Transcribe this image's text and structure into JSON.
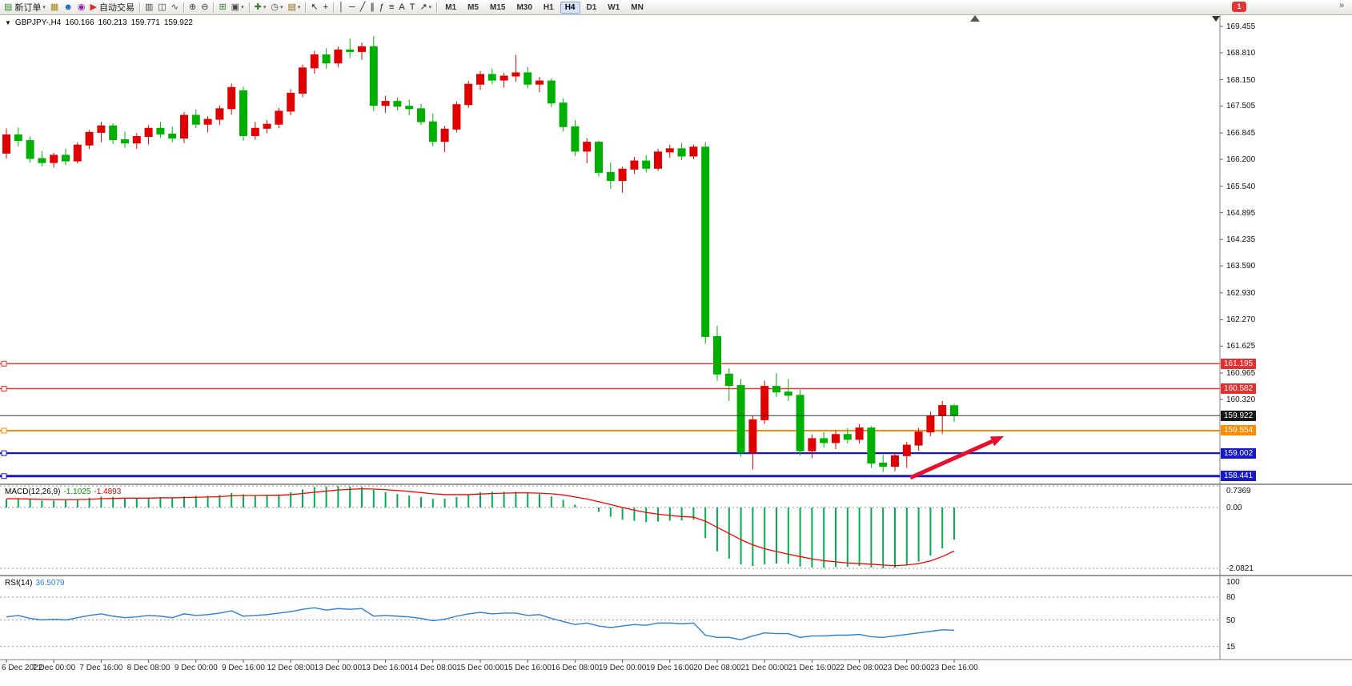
{
  "glyphs": {
    "caret": "▾",
    "collapse": "▼",
    "overflow": "»"
  },
  "colors": {
    "bull": "#e00000",
    "bear": "#00b000",
    "macd_hist": "#00b050",
    "macd_signal": "#ff0000",
    "rsi": "#2f7ed8"
  },
  "toolbar": {
    "badge": "1",
    "active_timeframe": "H4",
    "timeframes": [
      "M1",
      "M5",
      "M15",
      "M30",
      "H1",
      "H4",
      "D1",
      "W1",
      "MN"
    ],
    "items": [
      {
        "name": "new-order-button",
        "glyph": "▤",
        "color": "#2e8b2e",
        "label": "新订单",
        "caret": true
      },
      {
        "name": "new-chart-button",
        "glyph": "▦",
        "color": "#a8860b",
        "caret": false
      },
      {
        "name": "profiles-button",
        "glyph": "☻",
        "color": "#1565c0",
        "caret": false
      },
      {
        "name": "sounds-button",
        "glyph": "◉",
        "color": "#8e24aa",
        "caret": false
      },
      {
        "name": "autotrading-button",
        "glyph": "▶",
        "color": "#d32f2f",
        "label": "自动交易",
        "caret": false
      },
      {
        "sep": true
      },
      {
        "name": "bar-chart-button",
        "glyph": "▥",
        "color": "#444444",
        "caret": false
      },
      {
        "name": "candlestick-chart-button",
        "glyph": "◫",
        "color": "#444444",
        "caret": false
      },
      {
        "name": "line-chart-button",
        "glyph": "∿",
        "color": "#444444",
        "caret": false
      },
      {
        "sep": true
      },
      {
        "name": "zoom-in-button",
        "glyph": "⊕",
        "color": "#444444",
        "caret": false
      },
      {
        "name": "zoom-out-button",
        "glyph": "⊖",
        "color": "#444444",
        "caret": false
      },
      {
        "sep": true
      },
      {
        "name": "tile-windows-button",
        "glyph": "⊞",
        "color": "#2e7d32",
        "caret": false
      },
      {
        "name": "arrange-windows-button",
        "glyph": "▣",
        "color": "#444444",
        "caret": true
      },
      {
        "sep": true
      },
      {
        "name": "indicators-button",
        "glyph": "✚",
        "color": "#2e7d32",
        "caret": true
      },
      {
        "name": "periods-button",
        "glyph": "◷",
        "color": "#444444",
        "caret": true
      },
      {
        "name": "templates-button",
        "glyph": "▤",
        "color": "#8b6914",
        "caret": true
      },
      {
        "sep": true
      },
      {
        "name": "cursor-button",
        "glyph": "↖",
        "color": "#222222",
        "caret": false
      },
      {
        "name": "crosshair-button",
        "glyph": "+",
        "color": "#222222",
        "caret": false
      },
      {
        "sep": true
      },
      {
        "name": "vertical-line-button",
        "glyph": "│",
        "color": "#222222",
        "caret": false
      },
      {
        "name": "horizontal-line-button",
        "glyph": "─",
        "color": "#222222",
        "caret": false
      },
      {
        "name": "trendline-button",
        "glyph": "╱",
        "color": "#222222",
        "caret": false
      },
      {
        "name": "channel-button",
        "glyph": "∥",
        "color": "#222222",
        "caret": false
      },
      {
        "name": "fibonacci-button",
        "glyph": "ƒ",
        "color": "#222222",
        "caret": false
      },
      {
        "name": "lines-button",
        "glyph": "≡",
        "color": "#222222",
        "caret": false
      },
      {
        "name": "text-button",
        "glyph": "A",
        "color": "#222222",
        "caret": false
      },
      {
        "name": "label-button",
        "glyph": "T",
        "color": "#222222",
        "caret": false
      },
      {
        "name": "arrows-button",
        "glyph": "↗",
        "color": "#222222",
        "caret": true
      },
      {
        "sep": true
      }
    ]
  },
  "symbol_info": {
    "symbol": "GBPJPY-,H4",
    "open": "160.166",
    "high": "160.213",
    "low": "159.771",
    "close": "159.922"
  },
  "indicators": {
    "macd": {
      "name": "MACD(12,26,9)",
      "main_value": "-1.1025",
      "signal_value": "-1.4893"
    },
    "rsi": {
      "name": "RSI(14)",
      "value": "36.5079"
    }
  },
  "chart": {
    "price_boxes": [
      {
        "text": "161.195",
        "price": 161.195,
        "bg": "#e03030"
      },
      {
        "text": "160.582",
        "price": 160.582,
        "bg": "#e03030"
      },
      {
        "text": "159.922",
        "price": 159.922,
        "bg": "#151515"
      },
      {
        "text": "159.554",
        "price": 159.554,
        "bg": "#ff8c00"
      },
      {
        "text": "159.002",
        "price": 159.002,
        "bg": "#1717cc"
      },
      {
        "text": "158.441",
        "price": 158.441,
        "bg": "#1717cc"
      }
    ],
    "hlines": [
      {
        "price": 161.195,
        "color": "#ff2a2a",
        "width": 1.4
      },
      {
        "price": 160.582,
        "color": "#ff2a2a",
        "width": 1.4
      },
      {
        "price": 159.554,
        "color": "#ff8c00",
        "width": 2
      },
      {
        "price": 159.002,
        "color": "#1717cc",
        "width": 2.2
      },
      {
        "price": 158.441,
        "color": "#1717cc",
        "width": 3
      }
    ],
    "current_price": {
      "price": 159.922,
      "text": "159.922",
      "color": "#333333"
    },
    "arrow": {
      "i1": 76.3,
      "p1": 158.4,
      "i2": 84.2,
      "p2": 159.42,
      "color": "#e8112d"
    }
  },
  "chart_data": [
    {
      "type": "candlestick",
      "symbol": "GBPJPY-",
      "timeframe": "H4",
      "y_axis_ticks": [
        "169.455",
        "168.810",
        "168.150",
        "167.505",
        "166.845",
        "166.200",
        "165.540",
        "164.895",
        "164.235",
        "163.590",
        "162.930",
        "162.270",
        "161.625",
        "160.965",
        "160.320"
      ],
      "time_labels": [
        [
          "6 Dec 2022",
          0
        ],
        [
          "7 Dec 00:00",
          4
        ],
        [
          "7 Dec 16:00",
          8
        ],
        [
          "8 Dec 08:00",
          12
        ],
        [
          "9 Dec 00:00",
          16
        ],
        [
          "9 Dec 16:00",
          20
        ],
        [
          "12 Dec 08:00",
          24
        ],
        [
          "13 Dec 00:00",
          28
        ],
        [
          "13 Dec 16:00",
          32
        ],
        [
          "14 Dec 08:00",
          36
        ],
        [
          "15 Dec 00:00",
          40
        ],
        [
          "15 Dec 16:00",
          44
        ],
        [
          "16 Dec 08:00",
          48
        ],
        [
          "19 Dec 00:00",
          52
        ],
        [
          "19 Dec 16:00",
          56
        ],
        [
          "20 Dec 08:00",
          60
        ],
        [
          "21 Dec 00:00",
          64
        ],
        [
          "21 Dec 16:00",
          68
        ],
        [
          "22 Dec 08:00",
          72
        ],
        [
          "23 Dec 00:00",
          76
        ],
        [
          "23 Dec 16:00",
          80
        ]
      ],
      "ohlc": [
        [
          166.35,
          166.95,
          166.22,
          166.8
        ],
        [
          166.8,
          166.98,
          166.52,
          166.66
        ],
        [
          166.66,
          166.76,
          166.12,
          166.22
        ],
        [
          166.22,
          166.4,
          166.02,
          166.12
        ],
        [
          166.12,
          166.36,
          166.0,
          166.3
        ],
        [
          166.3,
          166.46,
          166.06,
          166.16
        ],
        [
          166.16,
          166.62,
          166.1,
          166.55
        ],
        [
          166.55,
          166.92,
          166.45,
          166.86
        ],
        [
          166.86,
          167.12,
          166.62,
          167.02
        ],
        [
          167.02,
          167.08,
          166.58,
          166.68
        ],
        [
          166.68,
          166.88,
          166.48,
          166.6
        ],
        [
          166.6,
          166.84,
          166.46,
          166.76
        ],
        [
          166.76,
          167.04,
          166.56,
          166.96
        ],
        [
          166.96,
          167.12,
          166.72,
          166.82
        ],
        [
          166.82,
          167.0,
          166.62,
          166.72
        ],
        [
          166.72,
          167.36,
          166.6,
          167.28
        ],
        [
          167.28,
          167.42,
          166.96,
          167.06
        ],
        [
          167.06,
          167.26,
          166.86,
          167.18
        ],
        [
          167.18,
          167.52,
          167.04,
          167.44
        ],
        [
          167.44,
          168.06,
          167.3,
          167.96
        ],
        [
          167.88,
          167.98,
          166.66,
          166.78
        ],
        [
          166.78,
          167.12,
          166.68,
          166.96
        ],
        [
          166.96,
          167.16,
          166.84,
          167.06
        ],
        [
          167.06,
          167.46,
          166.96,
          167.38
        ],
        [
          167.38,
          167.92,
          167.28,
          167.82
        ],
        [
          167.82,
          168.52,
          167.72,
          168.44
        ],
        [
          168.44,
          168.86,
          168.3,
          168.76
        ],
        [
          168.76,
          168.92,
          168.42,
          168.56
        ],
        [
          168.56,
          168.96,
          168.46,
          168.88
        ],
        [
          168.88,
          169.16,
          168.68,
          168.84
        ],
        [
          168.84,
          169.06,
          168.64,
          168.96
        ],
        [
          168.96,
          169.22,
          167.38,
          167.52
        ],
        [
          167.52,
          167.76,
          167.34,
          167.62
        ],
        [
          167.62,
          167.72,
          167.4,
          167.5
        ],
        [
          167.5,
          167.66,
          167.28,
          167.44
        ],
        [
          167.44,
          167.56,
          167.04,
          167.12
        ],
        [
          167.12,
          167.32,
          166.52,
          166.64
        ],
        [
          166.64,
          167.02,
          166.38,
          166.94
        ],
        [
          166.94,
          167.62,
          166.86,
          167.54
        ],
        [
          167.54,
          168.12,
          167.46,
          168.04
        ],
        [
          168.04,
          168.36,
          167.9,
          168.28
        ],
        [
          168.28,
          168.42,
          168.04,
          168.14
        ],
        [
          168.14,
          168.32,
          167.96,
          168.24
        ],
        [
          168.24,
          168.76,
          168.1,
          168.32
        ],
        [
          168.32,
          168.46,
          167.94,
          168.04
        ],
        [
          168.04,
          168.22,
          167.84,
          168.12
        ],
        [
          168.12,
          168.18,
          167.48,
          167.58
        ],
        [
          167.58,
          167.7,
          166.88,
          167.0
        ],
        [
          167.0,
          167.16,
          166.28,
          166.4
        ],
        [
          166.4,
          166.72,
          166.1,
          166.62
        ],
        [
          166.62,
          166.66,
          165.78,
          165.88
        ],
        [
          165.88,
          166.12,
          165.48,
          165.68
        ],
        [
          165.68,
          166.02,
          165.38,
          165.96
        ],
        [
          165.96,
          166.26,
          165.84,
          166.16
        ],
        [
          166.16,
          166.3,
          165.88,
          165.98
        ],
        [
          165.98,
          166.46,
          165.92,
          166.38
        ],
        [
          166.38,
          166.56,
          166.24,
          166.46
        ],
        [
          166.46,
          166.6,
          166.18,
          166.28
        ],
        [
          166.28,
          166.56,
          166.2,
          166.5
        ],
        [
          166.5,
          166.62,
          161.68,
          161.86
        ],
        [
          161.86,
          162.12,
          160.78,
          160.94
        ],
        [
          160.94,
          161.08,
          160.28,
          160.66
        ],
        [
          160.66,
          160.82,
          158.92,
          159.02
        ],
        [
          159.02,
          159.92,
          158.6,
          159.82
        ],
        [
          159.82,
          160.78,
          159.72,
          160.64
        ],
        [
          160.64,
          160.96,
          160.38,
          160.5
        ],
        [
          160.5,
          160.82,
          160.28,
          160.42
        ],
        [
          160.42,
          160.56,
          158.94,
          159.06
        ],
        [
          159.06,
          159.46,
          158.88,
          159.36
        ],
        [
          159.36,
          159.52,
          159.14,
          159.26
        ],
        [
          159.26,
          159.56,
          159.1,
          159.46
        ],
        [
          159.46,
          159.62,
          159.24,
          159.34
        ],
        [
          159.34,
          159.72,
          159.24,
          159.62
        ],
        [
          159.62,
          159.66,
          158.64,
          158.76
        ],
        [
          158.76,
          158.96,
          158.54,
          158.68
        ],
        [
          158.68,
          159.02,
          158.56,
          158.94
        ],
        [
          158.94,
          159.28,
          158.64,
          159.2
        ],
        [
          159.2,
          159.62,
          159.06,
          159.52
        ],
        [
          159.52,
          160.02,
          159.42,
          159.92
        ],
        [
          159.92,
          160.28,
          159.48,
          160.17
        ],
        [
          160.166,
          160.213,
          159.771,
          159.922
        ]
      ]
    },
    {
      "type": "bar",
      "name": "MACD(12,26,9)",
      "levels": [
        {
          "label": "0.7369",
          "v": 0.7369
        },
        {
          "label": "0.00",
          "v": 0
        },
        {
          "label": "-2.0821",
          "v": -2.0821
        }
      ],
      "main": [
        0.28,
        0.3,
        0.27,
        0.24,
        0.24,
        0.25,
        0.28,
        0.33,
        0.37,
        0.36,
        0.33,
        0.32,
        0.34,
        0.35,
        0.33,
        0.38,
        0.4,
        0.4,
        0.43,
        0.5,
        0.45,
        0.42,
        0.42,
        0.45,
        0.52,
        0.62,
        0.7,
        0.72,
        0.73,
        0.72,
        0.7,
        0.6,
        0.52,
        0.46,
        0.41,
        0.36,
        0.3,
        0.3,
        0.36,
        0.45,
        0.52,
        0.54,
        0.54,
        0.54,
        0.5,
        0.46,
        0.38,
        0.26,
        0.1,
        0.0,
        -0.15,
        -0.32,
        -0.42,
        -0.46,
        -0.5,
        -0.48,
        -0.45,
        -0.44,
        -0.42,
        -1.05,
        -1.5,
        -1.75,
        -1.95,
        -2.0,
        -1.95,
        -1.92,
        -1.93,
        -2.02,
        -2.05,
        -2.06,
        -2.04,
        -2.03,
        -2.0,
        -2.05,
        -2.08,
        -2.06,
        -1.98,
        -1.85,
        -1.65,
        -1.4,
        -1.1025
      ],
      "signal": [
        0.3,
        0.3,
        0.29,
        0.28,
        0.27,
        0.27,
        0.27,
        0.28,
        0.3,
        0.31,
        0.32,
        0.32,
        0.32,
        0.33,
        0.33,
        0.34,
        0.35,
        0.36,
        0.37,
        0.4,
        0.41,
        0.41,
        0.42,
        0.42,
        0.44,
        0.48,
        0.52,
        0.56,
        0.6,
        0.62,
        0.64,
        0.63,
        0.61,
        0.58,
        0.55,
        0.51,
        0.47,
        0.44,
        0.44,
        0.44,
        0.46,
        0.48,
        0.49,
        0.5,
        0.5,
        0.49,
        0.47,
        0.43,
        0.36,
        0.29,
        0.2,
        0.1,
        0.0,
        -0.09,
        -0.17,
        -0.23,
        -0.27,
        -0.31,
        -0.33,
        -0.47,
        -0.68,
        -0.89,
        -1.1,
        -1.28,
        -1.41,
        -1.51,
        -1.6,
        -1.68,
        -1.76,
        -1.82,
        -1.86,
        -1.9,
        -1.92,
        -1.94,
        -1.97,
        -1.99,
        -1.97,
        -1.92,
        -1.83,
        -1.68,
        -1.4893
      ]
    },
    {
      "type": "line",
      "name": "RSI(14)",
      "levels": [
        {
          "label": "100",
          "v": 100
        },
        {
          "label": "80",
          "v": 80
        },
        {
          "label": "50",
          "v": 50
        },
        {
          "label": "15",
          "v": 15
        }
      ],
      "values": [
        54,
        56,
        52,
        50,
        51,
        50,
        53,
        56,
        58,
        55,
        53,
        54,
        56,
        55,
        53,
        58,
        56,
        57,
        59,
        62,
        55,
        56,
        57,
        59,
        61,
        64,
        66,
        63,
        65,
        64,
        65,
        55,
        56,
        55,
        54,
        52,
        49,
        51,
        55,
        58,
        60,
        58,
        59,
        59,
        56,
        57,
        52,
        48,
        44,
        46,
        42,
        40,
        42,
        44,
        43,
        46,
        46,
        45,
        46,
        30,
        27,
        27,
        24,
        29,
        33,
        32,
        32,
        27,
        29,
        29,
        30,
        30,
        31,
        28,
        27,
        29,
        31,
        33,
        35,
        37,
        36.5079
      ]
    }
  ]
}
